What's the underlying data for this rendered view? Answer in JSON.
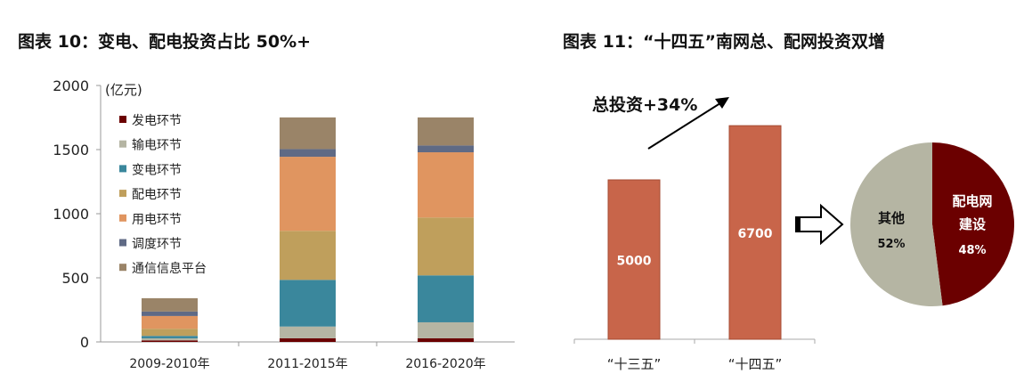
{
  "chart_data": [
    {
      "type": "bar",
      "stacked": true,
      "title": "图表 10：变电、配电投资占比 50%+",
      "unit_label": "(亿元)",
      "categories": [
        "2009-2010年",
        "2011-2015年",
        "2016-2020年"
      ],
      "ylim": [
        0,
        2000
      ],
      "yticks": [
        0,
        500,
        1000,
        1500,
        2000
      ],
      "grid": false,
      "legend_position": "top-left inside",
      "series": [
        {
          "name": "发电环节",
          "color": "#6b0000",
          "values": [
            12,
            28,
            28
          ]
        },
        {
          "name": "输电环节",
          "color": "#b5b5a3",
          "values": [
            16,
            92,
            125
          ]
        },
        {
          "name": "变电环节",
          "color": "#3a879c",
          "values": [
            19,
            364,
            366
          ]
        },
        {
          "name": "配电环节",
          "color": "#bf9f5c",
          "values": [
            56,
            382,
            451
          ]
        },
        {
          "name": "用电环节",
          "color": "#e09560",
          "values": [
            99,
            578,
            509
          ]
        },
        {
          "name": "调度环节",
          "color": "#5f6a85",
          "values": [
            35,
            60,
            53
          ]
        },
        {
          "name": "通信信息平台",
          "color": "#9a8468",
          "values": [
            104,
            247,
            219
          ]
        }
      ]
    },
    {
      "type": "bar",
      "title": "图表 11：“十四五”南网总、配网投资双增",
      "annotation": "总投资+34%",
      "categories": [
        "“十三五”",
        "“十四五”"
      ],
      "values": [
        5000,
        6700
      ],
      "data_labels": [
        "5000",
        "6700"
      ],
      "color": "#c8654a"
    },
    {
      "type": "pie",
      "slices": [
        {
          "label": "配电网\n建设",
          "label_lines": [
            "配电网",
            "建设"
          ],
          "value": 48,
          "value_label": "48%",
          "color": "#6b0000"
        },
        {
          "label": "其他",
          "label_lines": [
            "其他"
          ],
          "value": 52,
          "value_label": "52%",
          "color": "#b5b5a3"
        }
      ]
    }
  ]
}
